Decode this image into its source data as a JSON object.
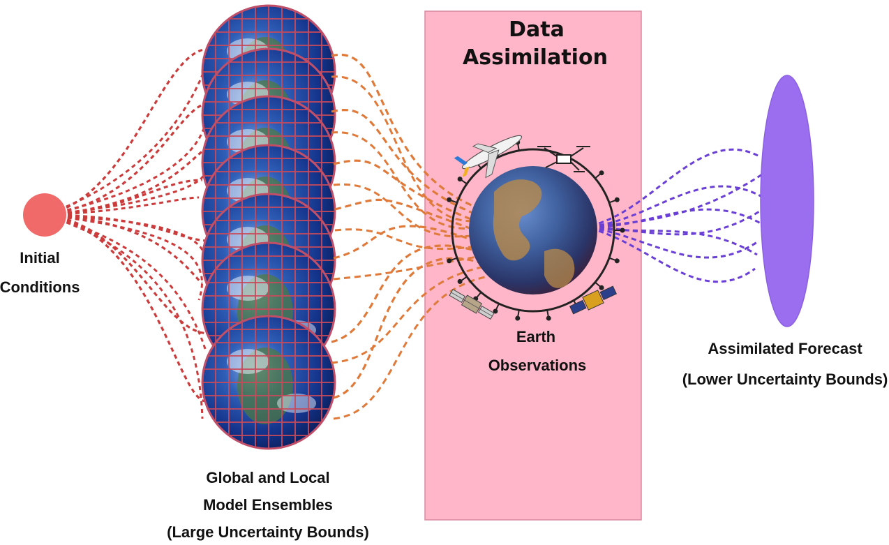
{
  "title": {
    "line1": "Data",
    "line2": "Assimilation"
  },
  "initial_conditions": {
    "line1": "Initial",
    "line2": "Conditions"
  },
  "ensembles": {
    "line1": "Global and Local",
    "line2": "Model Ensembles",
    "line3": "(Large Uncertainty Bounds)"
  },
  "observations": {
    "line1": "Earth",
    "line2": "Observations"
  },
  "forecast": {
    "line1": "Assimilated Forecast",
    "line2": "(Lower Uncertainty Bounds)"
  },
  "colors": {
    "panel": "#ffb6c8",
    "initial_dot": "#f06a6a",
    "initial_links": "#cc3b3b",
    "ensemble_links": "#e07a3a",
    "forecast_links": "#6a3fd6",
    "forecast_ellipse": "#9b6ef0"
  },
  "icons": [
    "airplane-icon",
    "drone-icon",
    "satellite-icon",
    "satellite-icon",
    "ground-station-icon"
  ]
}
